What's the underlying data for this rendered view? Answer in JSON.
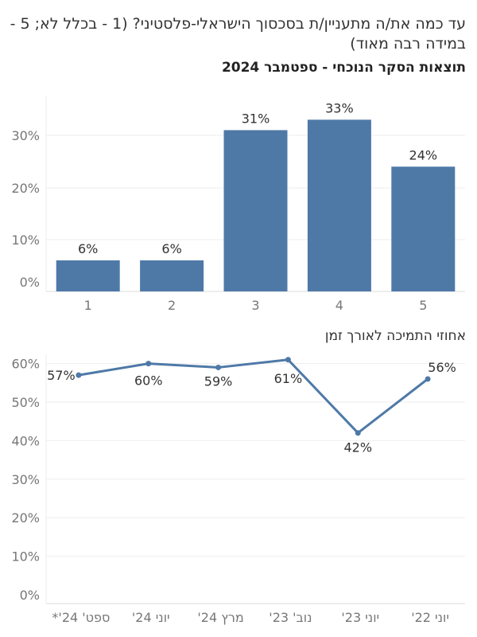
{
  "question": "עד כמה את/ה מתעניין/ת בסכסוך הישראלי-פלסטיני? (1 - בכלל לא; 5 - במידה רבה מאוד)",
  "subtitle": "תוצאות הסקר הנוכחי - ספטמבר 2024",
  "section2_title": "אחוזי התמיכה לאורך זמן",
  "colors": {
    "bar": "#4e79a7",
    "line": "#4e79a7",
    "grid": "#eeeeee"
  },
  "chart_data": [
    {
      "type": "bar",
      "categories": [
        "1",
        "2",
        "3",
        "4",
        "5"
      ],
      "values": [
        6,
        6,
        31,
        33,
        24
      ],
      "data_labels": [
        "6%",
        "6%",
        "31%",
        "33%",
        "24%"
      ],
      "yticks": [
        "0%",
        "10%",
        "20%",
        "30%"
      ],
      "ylim": [
        0,
        35
      ],
      "grid": true
    },
    {
      "type": "line",
      "categories": [
        "ספט' 24'*",
        "יוני 24'",
        "מרץ 24'",
        "נוב' 23'",
        "יוני 23'",
        "יוני 22'"
      ],
      "values": [
        57,
        60,
        59,
        61,
        42,
        56
      ],
      "data_labels": [
        "57%",
        "60%",
        "59%",
        "61%",
        "42%",
        "56%"
      ],
      "yticks": [
        "0%",
        "10%",
        "20%",
        "30%",
        "40%",
        "50%",
        "60%"
      ],
      "ylim": [
        0,
        62
      ],
      "grid": true
    }
  ]
}
